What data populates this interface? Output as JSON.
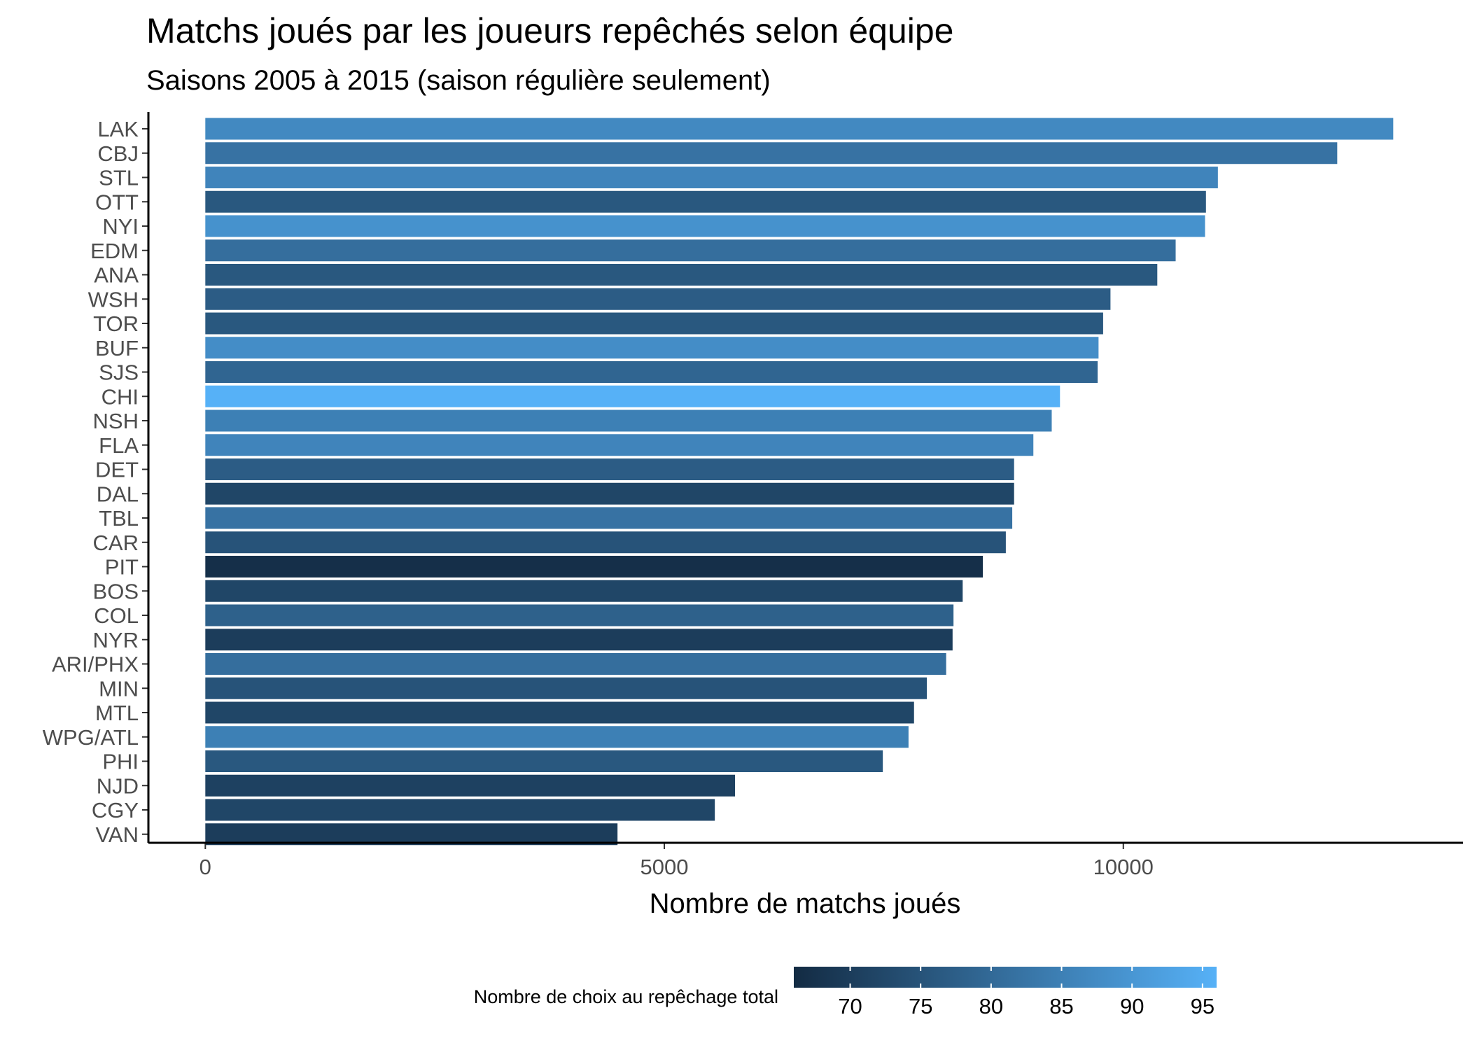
{
  "chart_data": {
    "type": "bar",
    "orientation": "horizontal",
    "title": "Matchs joués par les joueurs repêchés selon équipe",
    "subtitle": "Saisons 2005 à 2015 (saison régulière seulement)",
    "xlabel": "Nombre de matchs joués",
    "ylabel": "",
    "xlim": [
      -620,
      13700
    ],
    "xticks": [
      0,
      5000,
      10000
    ],
    "categories": [
      "LAK",
      "CBJ",
      "STL",
      "OTT",
      "NYI",
      "EDM",
      "ANA",
      "WSH",
      "TOR",
      "BUF",
      "SJS",
      "CHI",
      "NSH",
      "FLA",
      "DET",
      "DAL",
      "TBL",
      "CAR",
      "PIT",
      "BOS",
      "COL",
      "NYR",
      "ARI/PHX",
      "MIN",
      "MTL",
      "WPG/ATL",
      "PHI",
      "NJD",
      "CGY",
      "VAN"
    ],
    "values": [
      12940,
      12330,
      11030,
      10900,
      10890,
      10570,
      10370,
      9860,
      9780,
      9730,
      9720,
      9310,
      9220,
      9020,
      8810,
      8810,
      8790,
      8720,
      8470,
      8250,
      8150,
      8140,
      8070,
      7860,
      7720,
      7660,
      7380,
      5770,
      5550,
      4490
    ],
    "color_values": [
      87,
      82,
      86,
      76,
      89,
      81,
      76,
      77,
      76,
      88,
      79,
      96,
      85,
      86,
      77,
      72,
      82,
      75,
      67,
      72,
      78,
      70,
      81,
      75,
      72,
      85,
      76,
      71,
      72,
      70
    ],
    "legend": {
      "title": "Nombre de choix au repêchage total",
      "position": "bottom",
      "range": [
        66,
        96
      ],
      "ticks": [
        70,
        75,
        80,
        85,
        90,
        95
      ],
      "color_low": "#132B43",
      "color_high": "#56B1F7"
    },
    "grid": false
  }
}
